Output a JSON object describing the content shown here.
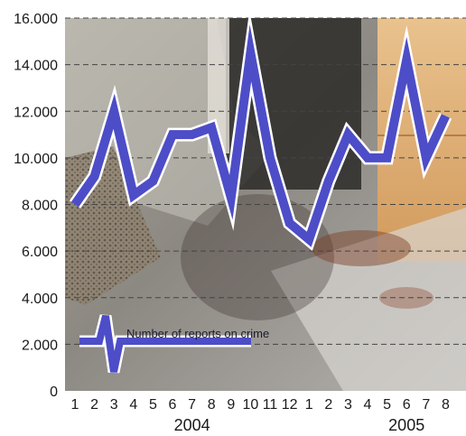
{
  "chart_data": {
    "type": "line",
    "y_ticks": [
      "0",
      "2.000",
      "4.000",
      "6.000",
      "8.000",
      "10.000",
      "12.000",
      "14.000",
      "16.000"
    ],
    "ylim": [
      0,
      16000
    ],
    "x_ticks": [
      "1",
      "2",
      "3",
      "4",
      "5",
      "6",
      "7",
      "8",
      "9",
      "10",
      "11",
      "12",
      "1",
      "2",
      "3",
      "4",
      "5",
      "6",
      "7",
      "8"
    ],
    "year_labels": [
      {
        "label": "2004",
        "month_index": 6
      },
      {
        "label": "2005",
        "month_index": 17
      }
    ],
    "series": [
      {
        "name": "Number of reports on crime",
        "values": [
          8000,
          9200,
          12000,
          8400,
          9000,
          11000,
          11000,
          11300,
          8300,
          14500,
          10000,
          7200,
          6500,
          9000,
          11000,
          10000,
          10000,
          14200,
          10000,
          11800
        ]
      }
    ],
    "grid": true,
    "legend": {
      "label": "Number of reports on crime",
      "position": "bottom-left"
    },
    "colors": {
      "line_fill": "#4d4dc8",
      "line_outline": "#ffffff",
      "grid": "#444444"
    }
  }
}
